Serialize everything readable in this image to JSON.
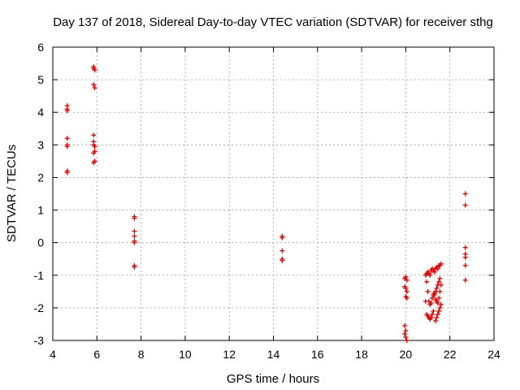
{
  "chart_data": {
    "type": "scatter",
    "title": "Day 137 of 2018, Sidereal Day-to-day VTEC variation (SDTVAR) for receiver sthg",
    "xlabel": "GPS time / hours",
    "ylabel": "SDTVAR / TECUs",
    "xlim": [
      4,
      24
    ],
    "ylim": [
      -3,
      6
    ],
    "xticks": [
      4,
      6,
      8,
      10,
      12,
      14,
      16,
      18,
      20,
      22,
      24
    ],
    "yticks": [
      -3,
      -2,
      -1,
      0,
      1,
      2,
      3,
      4,
      5,
      6
    ],
    "grid": true,
    "marker": "+",
    "color": "#e00000",
    "series": [
      {
        "name": "SDTVAR",
        "x": [
          4.65,
          4.65,
          4.65,
          4.65,
          4.65,
          4.65,
          4.65,
          4.65,
          5.85,
          5.85,
          5.9,
          5.85,
          5.9,
          5.85,
          5.85,
          5.9,
          5.85,
          5.9,
          5.85,
          5.85,
          5.9,
          7.7,
          7.7,
          7.7,
          7.7,
          7.7,
          7.7,
          7.7,
          7.7,
          14.4,
          14.4,
          14.4,
          14.4,
          14.4,
          19.95,
          20.0,
          20.05,
          19.95,
          20.0,
          20.0,
          20.05,
          19.95,
          20.0,
          19.95,
          20.0,
          20.05,
          20.05,
          20.9,
          20.95,
          21.0,
          21.05,
          21.1,
          21.15,
          21.2,
          21.25,
          21.3,
          21.35,
          21.4,
          21.45,
          21.5,
          21.55,
          21.6,
          20.95,
          21.0,
          21.05,
          21.1,
          21.15,
          21.2,
          21.25,
          21.3,
          21.35,
          21.4,
          21.45,
          21.5,
          21.55,
          21.3,
          21.35,
          21.4,
          21.45,
          21.5,
          21.55,
          21.6,
          21.6,
          21.55,
          21.5,
          21.45,
          21.4,
          21.35,
          20.9,
          20.95,
          21.0,
          21.05,
          21.1,
          21.15,
          21.2,
          21.25,
          22.7,
          22.7,
          22.7,
          22.7,
          22.7,
          22.7,
          22.7
        ],
        "y": [
          4.2,
          4.05,
          3.2,
          3.0,
          2.95,
          2.2,
          2.15,
          4.1,
          5.4,
          5.35,
          5.3,
          4.85,
          4.75,
          3.3,
          3.1,
          2.95,
          2.75,
          2.5,
          2.45,
          3.0,
          2.8,
          0.8,
          0.75,
          0.35,
          0.2,
          0.05,
          0.0,
          -0.7,
          -0.75,
          0.2,
          0.15,
          -0.25,
          -0.5,
          -0.55,
          -1.1,
          -1.05,
          -1.15,
          -1.35,
          -1.4,
          -1.65,
          -1.7,
          -2.55,
          -2.7,
          -2.8,
          -2.9,
          -3.0,
          -1.5,
          -1.0,
          -0.95,
          -0.9,
          -0.95,
          -1.0,
          -0.85,
          -0.8,
          -0.85,
          -0.9,
          -0.8,
          -0.75,
          -0.8,
          -0.7,
          -0.7,
          -0.65,
          -1.2,
          -1.5,
          -1.8,
          -1.9,
          -1.85,
          -1.7,
          -1.6,
          -1.55,
          -1.5,
          -1.4,
          -1.3,
          -1.2,
          -1.1,
          -1.6,
          -1.75,
          -1.8,
          -1.85,
          -1.7,
          -1.5,
          -1.3,
          -1.9,
          -2.0,
          -2.1,
          -2.2,
          -2.3,
          -2.4,
          -1.8,
          -2.2,
          -2.25,
          -2.3,
          -2.35,
          -2.3,
          -2.2,
          -2.1,
          1.5,
          1.15,
          -0.15,
          -0.35,
          -0.45,
          -0.7,
          -1.15
        ]
      }
    ]
  }
}
